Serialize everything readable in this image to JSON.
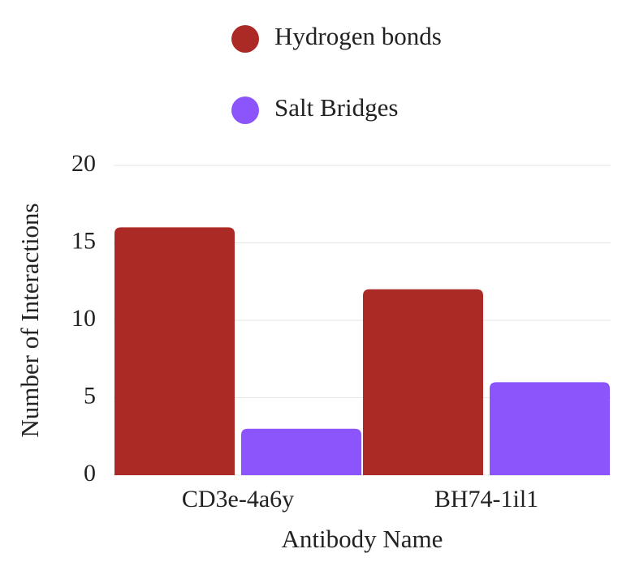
{
  "chart_data": {
    "type": "bar",
    "categories": [
      "CD3e-4a6y",
      "BH74-1il1"
    ],
    "series": [
      {
        "name": "Hydrogen bonds",
        "color": "#ab2a25",
        "values": [
          16,
          12
        ]
      },
      {
        "name": "Salt Bridges",
        "color": "#8b55fb",
        "values": [
          3,
          6
        ]
      }
    ],
    "x_label": "Antibody Name",
    "y_label": "Number of Interactions",
    "ylim": [
      0,
      20
    ],
    "yticks": [
      0,
      5,
      10,
      15,
      20
    ],
    "grid": true
  }
}
